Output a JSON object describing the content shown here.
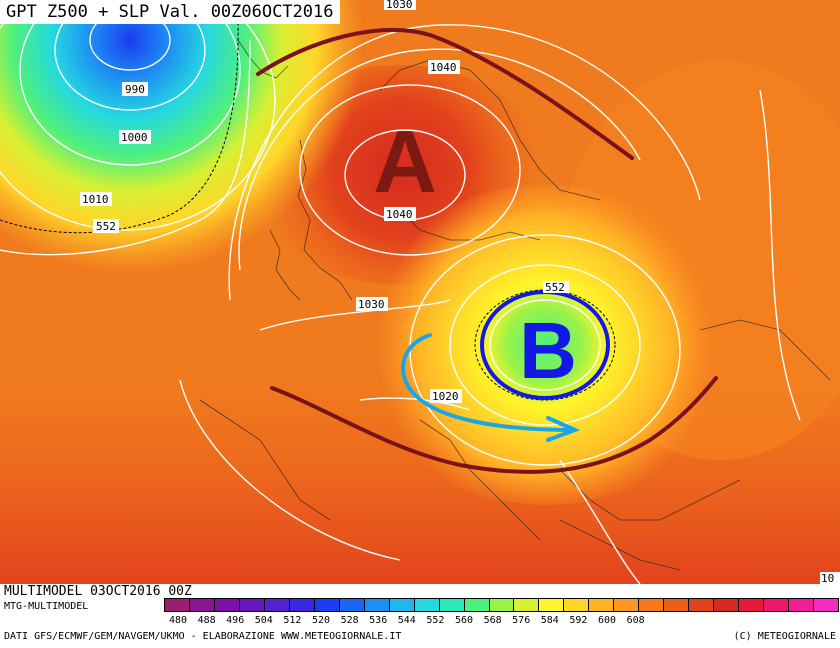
{
  "title": "GPT Z500 + SLP Val. 00Z06OCT2016",
  "footer": {
    "run": "MULTIMODEL 03OCT2016 00Z",
    "model": "MTG-MULTIMODEL",
    "sources": "DATI GFS/ECMWF/GEM/NAVGEM/UKMO - ELABORAZIONE WWW.METEOGIORNALE.IT",
    "copyright": "(C) METEOGIORNALE"
  },
  "pressure_centers": {
    "high": "A",
    "low": "B"
  },
  "isobar_labels": [
    "1030",
    "1040",
    "990",
    "1000",
    "1010",
    "552",
    "1040",
    "1030",
    "1020",
    "552",
    "10"
  ],
  "legend": {
    "values": [
      "480",
      "488",
      "496",
      "504",
      "512",
      "520",
      "528",
      "536",
      "544",
      "552",
      "560",
      "568",
      "576",
      "584",
      "592",
      "600",
      "608"
    ],
    "colors": [
      "#9b1f6e",
      "#8a1590",
      "#7b12a5",
      "#6a16bd",
      "#5520d2",
      "#3a27e6",
      "#1f3cf2",
      "#1c66f4",
      "#1d8ef3",
      "#22b6ee",
      "#25d8e0",
      "#2ce8b6",
      "#4ef07c",
      "#98f24a",
      "#d8f032",
      "#fff52a",
      "#ffd62a",
      "#ffb426",
      "#ff9522",
      "#f57a1e",
      "#ec5e1c",
      "#e2421c",
      "#d62a20",
      "#e81a3a",
      "#f01868",
      "#f51c96",
      "#f62cc0"
    ]
  },
  "annotation_colors": {
    "high_letter": "#7a1a12",
    "low_letter": "#1219e6",
    "ridge_line": "#7a1219",
    "arrow": "#1aa6e6"
  }
}
